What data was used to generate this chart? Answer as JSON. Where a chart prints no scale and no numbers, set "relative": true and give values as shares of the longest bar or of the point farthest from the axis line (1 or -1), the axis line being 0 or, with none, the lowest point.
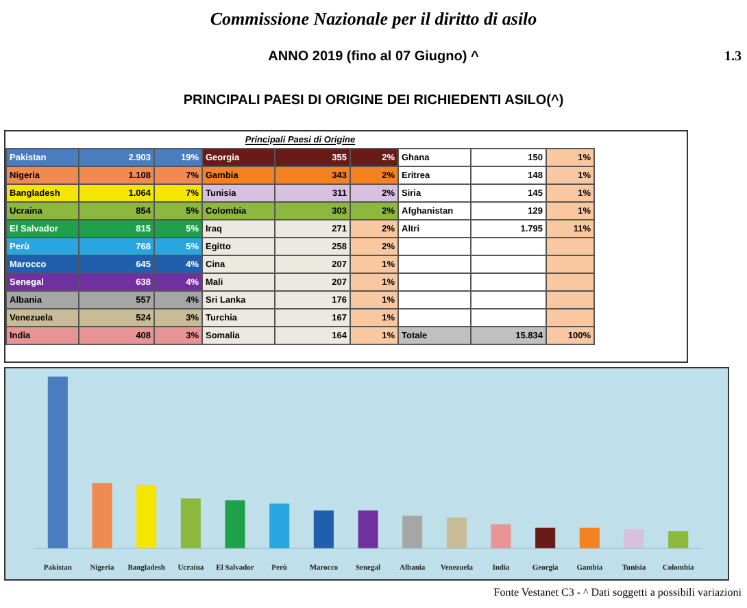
{
  "chart_data": [
    {
      "type": "other",
      "title": "ANNO 2019 (fino al 07 Giugno) ^",
      "subtitle": "PRINCIPALI PAESI DI ORIGINE DEI RICHIEDENTI ASILO(^)",
      "annotations": [
        "Commissione Nazionale per il diritto di asilo",
        "1.3",
        "Principali Paesi di Origine",
        "Pakistan",
        "2.903",
        "19%",
        "Nigeria",
        "1.108",
        "7%",
        "Bangladesh",
        "1.064",
        "7%",
        "Ucraina",
        "854",
        "5%",
        "El Salvador",
        "815",
        "5%",
        "Perù",
        "768",
        "5%",
        "Marocco",
        "645",
        "4%",
        "Senegal",
        "638",
        "4%",
        "Albania",
        "557",
        "4%",
        "Venezuela",
        "524",
        "3%",
        "India",
        "408",
        "3%",
        "Georgia",
        "355",
        "2%",
        "Gambia",
        "343",
        "2%",
        "Tunisia",
        "311",
        "2%",
        "Colombia",
        "303",
        "2%",
        "Iraq",
        "271",
        "2%",
        "Egitto",
        "258",
        "2%",
        "Cina",
        "207",
        "1%",
        "Mali",
        "207",
        "1%",
        "Sri Lanka",
        "176",
        "1%",
        "Turchia",
        "167",
        "1%",
        "Somalia",
        "164",
        "1%",
        "Ghana",
        "150",
        "1%",
        "Eritrea",
        "148",
        "1%",
        "Siria",
        "145",
        "1%",
        "Afghanistan",
        "129",
        "1%",
        "Altri",
        "1.795",
        "11%",
        "Totale",
        "15.834",
        "100%"
      ]
    },
    {
      "type": "bar",
      "relative": true,
      "categories": [
        "Pakistan",
        "Nigeria",
        "Bangladesh",
        "Ucraina",
        "El Salvador",
        "Perù",
        "Marocco",
        "Senegal",
        "Albania",
        "Venezuela",
        "India",
        "Georgia",
        "Gambia",
        "Tunisia",
        "Colombia"
      ],
      "values": [
        1,
        0.38,
        0.37,
        0.29,
        0.28,
        0.26,
        0.22,
        0.22,
        0.19,
        0.18,
        0.14,
        0.12,
        0.12,
        0.11,
        0.1
      ],
      "colors": [
        "#4a7cc0",
        "#f08a50",
        "#f5e600",
        "#8db840",
        "#1fa04a",
        "#29a6e0",
        "#1f5fae",
        "#7030a0",
        "#a6a6a6",
        "#c8bc96",
        "#e89494",
        "#6b1a1a",
        "#f58220",
        "#d8c0e0",
        "#8db840"
      ],
      "annotations": [
        "Fonte Vestanet C3 - ^ Dati soggetti a possibili variazioni"
      ]
    }
  ]
}
